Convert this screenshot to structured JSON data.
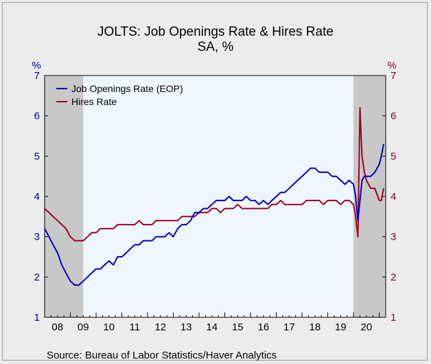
{
  "chart_data": {
    "type": "line",
    "title": "JOLTS: Job Openings Rate & Hires Rate",
    "subtitle": "SA, %",
    "left_unit": "%",
    "right_unit": "%",
    "ylim": [
      1,
      7
    ],
    "y_ticks": [
      1,
      2,
      3,
      4,
      5,
      6,
      7
    ],
    "x_tick_labels": [
      "08",
      "09",
      "10",
      "11",
      "12",
      "13",
      "14",
      "15",
      "16",
      "17",
      "18",
      "19",
      "20"
    ],
    "xlim": [
      2008.0,
      2021.25
    ],
    "recessions": [
      [
        2008.0,
        2009.5
      ],
      [
        2020.0,
        2021.25
      ]
    ],
    "grid": false,
    "legend_position": "top-left",
    "colors": {
      "job_openings": "#0000c0",
      "hires": "#a0001e",
      "left_axis": "#00008b",
      "right_axis": "#8b0020",
      "plot_bg": "#eef6ff",
      "recession_shade": "#c8c8c8"
    },
    "series": [
      {
        "name": "Job Openings Rate (EOP)",
        "axis": "left",
        "x": [
          2008.0,
          2008.17,
          2008.33,
          2008.5,
          2008.67,
          2008.83,
          2009.0,
          2009.17,
          2009.33,
          2009.5,
          2009.67,
          2009.83,
          2010.0,
          2010.17,
          2010.33,
          2010.5,
          2010.67,
          2010.83,
          2011.0,
          2011.17,
          2011.33,
          2011.5,
          2011.67,
          2011.83,
          2012.0,
          2012.17,
          2012.33,
          2012.5,
          2012.67,
          2012.83,
          2013.0,
          2013.17,
          2013.33,
          2013.5,
          2013.67,
          2013.83,
          2014.0,
          2014.17,
          2014.33,
          2014.5,
          2014.67,
          2014.83,
          2015.0,
          2015.17,
          2015.33,
          2015.5,
          2015.67,
          2015.83,
          2016.0,
          2016.17,
          2016.33,
          2016.5,
          2016.67,
          2016.83,
          2017.0,
          2017.17,
          2017.33,
          2017.5,
          2017.67,
          2017.83,
          2018.0,
          2018.17,
          2018.33,
          2018.5,
          2018.67,
          2018.83,
          2019.0,
          2019.17,
          2019.33,
          2019.5,
          2019.67,
          2019.83,
          2020.0,
          2020.08,
          2020.17,
          2020.25,
          2020.33,
          2020.42,
          2020.5,
          2020.67,
          2020.83,
          2021.0,
          2021.08,
          2021.17
        ],
        "values": [
          3.2,
          3.0,
          2.8,
          2.6,
          2.3,
          2.1,
          1.9,
          1.8,
          1.8,
          1.9,
          2.0,
          2.1,
          2.2,
          2.2,
          2.3,
          2.4,
          2.3,
          2.5,
          2.5,
          2.6,
          2.7,
          2.8,
          2.8,
          2.9,
          2.9,
          2.9,
          3.0,
          3.0,
          3.0,
          3.1,
          3.0,
          3.2,
          3.3,
          3.3,
          3.4,
          3.6,
          3.6,
          3.7,
          3.7,
          3.8,
          3.9,
          3.9,
          3.9,
          4.0,
          3.9,
          3.9,
          3.9,
          4.0,
          3.9,
          3.9,
          3.8,
          3.9,
          3.8,
          3.9,
          4.0,
          4.1,
          4.1,
          4.2,
          4.3,
          4.4,
          4.5,
          4.6,
          4.7,
          4.7,
          4.6,
          4.6,
          4.6,
          4.5,
          4.5,
          4.4,
          4.3,
          4.4,
          4.3,
          4.0,
          3.4,
          3.9,
          4.4,
          4.5,
          4.5,
          4.5,
          4.6,
          4.8,
          5.0,
          5.3
        ]
      },
      {
        "name": "Hires Rate",
        "axis": "right",
        "x": [
          2008.0,
          2008.17,
          2008.33,
          2008.5,
          2008.67,
          2008.83,
          2009.0,
          2009.17,
          2009.33,
          2009.5,
          2009.67,
          2009.83,
          2010.0,
          2010.17,
          2010.33,
          2010.5,
          2010.67,
          2010.83,
          2011.0,
          2011.17,
          2011.33,
          2011.5,
          2011.67,
          2011.83,
          2012.0,
          2012.17,
          2012.33,
          2012.5,
          2012.67,
          2012.83,
          2013.0,
          2013.17,
          2013.33,
          2013.5,
          2013.67,
          2013.83,
          2014.0,
          2014.17,
          2014.33,
          2014.5,
          2014.67,
          2014.83,
          2015.0,
          2015.17,
          2015.33,
          2015.5,
          2015.67,
          2015.83,
          2016.0,
          2016.17,
          2016.33,
          2016.5,
          2016.67,
          2016.83,
          2017.0,
          2017.17,
          2017.33,
          2017.5,
          2017.67,
          2017.83,
          2018.0,
          2018.17,
          2018.33,
          2018.5,
          2018.67,
          2018.83,
          2019.0,
          2019.17,
          2019.33,
          2019.5,
          2019.67,
          2019.83,
          2020.0,
          2020.08,
          2020.17,
          2020.25,
          2020.33,
          2020.42,
          2020.5,
          2020.67,
          2020.83,
          2021.0,
          2021.08,
          2021.17
        ],
        "values": [
          3.7,
          3.6,
          3.5,
          3.4,
          3.3,
          3.2,
          3.0,
          2.9,
          2.9,
          2.9,
          3.0,
          3.1,
          3.1,
          3.2,
          3.2,
          3.2,
          3.2,
          3.3,
          3.3,
          3.3,
          3.3,
          3.3,
          3.4,
          3.3,
          3.3,
          3.3,
          3.4,
          3.4,
          3.4,
          3.4,
          3.4,
          3.4,
          3.5,
          3.5,
          3.5,
          3.5,
          3.6,
          3.6,
          3.6,
          3.7,
          3.7,
          3.6,
          3.7,
          3.7,
          3.7,
          3.8,
          3.7,
          3.7,
          3.7,
          3.7,
          3.7,
          3.7,
          3.7,
          3.8,
          3.8,
          3.9,
          3.8,
          3.8,
          3.8,
          3.8,
          3.8,
          3.9,
          3.9,
          3.9,
          3.9,
          3.8,
          3.9,
          3.9,
          3.9,
          3.8,
          3.9,
          3.9,
          3.8,
          3.5,
          3.0,
          6.2,
          5.0,
          4.6,
          4.4,
          4.2,
          4.2,
          3.9,
          3.9,
          4.2
        ]
      }
    ]
  },
  "source": "Source:  Bureau of Labor Statistics/Haver Analytics"
}
